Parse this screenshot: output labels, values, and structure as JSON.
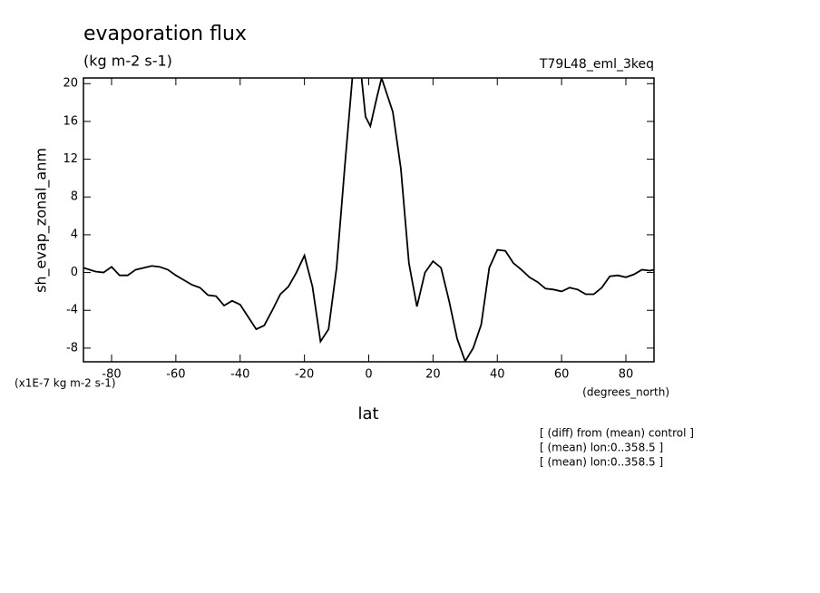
{
  "chart_data": {
    "type": "line",
    "title": "evaporation flux",
    "subtitle": "(kg m-2 s-1)",
    "run_label": "T79L48_eml_3keq",
    "y_label": "sh_evap_zonal_anm",
    "x_label": "lat",
    "y_units": "(x1E-7 kg m-2 s-1)",
    "x_units": "(degrees_north)",
    "notes": [
      "[ (diff) from (mean) control ]",
      "[ (mean) lon:0..358.5 ]",
      "[ (mean) lon:0..358.5 ]"
    ],
    "x": [
      -88.75,
      -85,
      -82.5,
      -80,
      -77.5,
      -75,
      -72.5,
      -70,
      -67.5,
      -65,
      -62.5,
      -60,
      -57.5,
      -55,
      -52.5,
      -50,
      -47.5,
      -45,
      -42.5,
      -40,
      -37.5,
      -35,
      -32.5,
      -30,
      -27.5,
      -25,
      -22.5,
      -20,
      -17.5,
      -15,
      -12.5,
      -10,
      -7.5,
      -5,
      -2.5,
      -1,
      0.5,
      2.5,
      4,
      7.5,
      10,
      12.5,
      15,
      17.5,
      20,
      22.5,
      25,
      27.5,
      30,
      32.5,
      35,
      37.5,
      40,
      42.5,
      45,
      47.5,
      50,
      52.5,
      55,
      57.5,
      60,
      62.5,
      65,
      67.5,
      70,
      72.5,
      75,
      77.5,
      80,
      82.5,
      85,
      87.5,
      88.75
    ],
    "series": [
      {
        "name": "sh_evap_zonal_anm",
        "color": "#000000",
        "values": [
          0.5,
          0.1,
          0.0,
          0.6,
          -0.3,
          -0.3,
          0.3,
          0.5,
          0.7,
          0.6,
          0.3,
          -0.3,
          -0.8,
          -1.3,
          -1.6,
          -2.4,
          -2.5,
          -3.5,
          -3.0,
          -3.4,
          -4.7,
          -6.0,
          -5.6,
          -4.0,
          -2.3,
          -1.5,
          0.0,
          1.8,
          -1.5,
          -7.3,
          -6.0,
          0.5,
          11.0,
          21.0,
          21.5,
          16.5,
          15.5,
          18.5,
          20.6,
          17.0,
          11.0,
          1.0,
          -3.6,
          0.0,
          1.2,
          0.5,
          -3.0,
          -7.0,
          -9.4,
          -8.0,
          -5.5,
          0.5,
          2.4,
          2.3,
          1.0,
          0.3,
          -0.5,
          -1.0,
          -1.7,
          -1.8,
          -2.0,
          -1.6,
          -1.8,
          -2.3,
          -2.3,
          -1.6,
          -0.4,
          -0.3,
          -0.5,
          -0.2,
          0.3,
          0.2,
          0.3
        ]
      }
    ],
    "xlim": [
      -88.75,
      88.75
    ],
    "ylim": [
      -9.45,
      20.6
    ],
    "xticks": [
      -80,
      -60,
      -40,
      -20,
      0,
      20,
      40,
      60,
      80
    ],
    "yticks": [
      -8,
      -4,
      0,
      4,
      8,
      12,
      16,
      20
    ]
  }
}
